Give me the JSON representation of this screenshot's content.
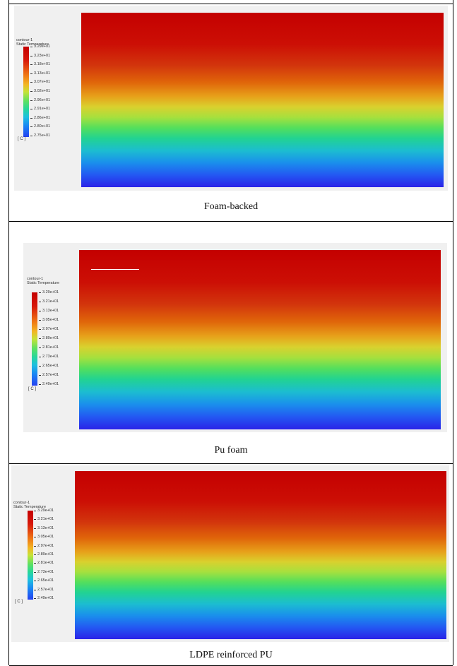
{
  "panels": [
    {
      "caption": "Foam-backed",
      "legend": {
        "title": "contour-1",
        "quantity": "Static Temperature",
        "unit": "[ C ]",
        "ticks": [
          "3.29e+01",
          "3.23e+01",
          "3.18e+01",
          "3.13e+01",
          "3.07e+01",
          "3.02e+01",
          "2.96e+01",
          "2.91e+01",
          "2.86e+01",
          "2.80e+01",
          "2.75e+01"
        ]
      }
    },
    {
      "caption": "Pu foam",
      "legend": {
        "title": "contour-1",
        "quantity": "Static Temperature",
        "unit": "[ C ]",
        "ticks": [
          "3.29e+01",
          "3.21e+01",
          "3.13e+01",
          "3.05e+01",
          "2.97e+01",
          "2.89e+01",
          "2.81e+01",
          "2.73e+01",
          "2.65e+01",
          "2.57e+01",
          "2.49e+01"
        ]
      }
    },
    {
      "caption": "LDPE reinforced PU",
      "legend": {
        "title": "contour-1",
        "quantity": "Static Temperature",
        "unit": "[ C ]",
        "ticks": [
          "3.29e+01",
          "3.21e+01",
          "3.13e+01",
          "3.05e+01",
          "2.97e+01",
          "2.89e+01",
          "2.81e+01",
          "2.73e+01",
          "2.65e+01",
          "2.57e+01",
          "2.49e+01"
        ]
      }
    }
  ]
}
